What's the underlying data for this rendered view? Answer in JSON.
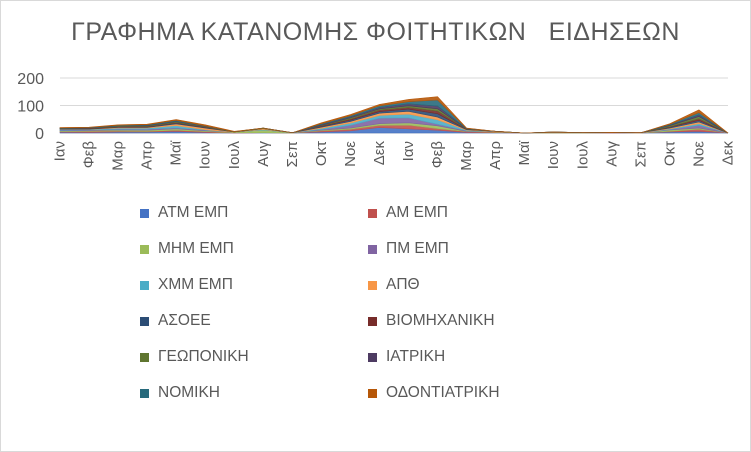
{
  "chart_data": {
    "type": "area",
    "stacked": true,
    "title": "ΓΡΑΦΗΜΑ ΚΑΤΑΝΟΜΗΣ ΦΟΙΤΗΤΙΚΩΝ   ΕΙΔΗΣΕΩΝ",
    "ylim": [
      0,
      200
    ],
    "yticks": [
      0,
      100,
      200
    ],
    "grid": true,
    "legend_position": "bottom",
    "categories": [
      "Ιαν",
      "Φεβ",
      "Μαρ",
      "Απρ",
      "Μαϊ",
      "Ιουν",
      "Ιουλ",
      "Αυγ",
      "Σεπ",
      "Οκτ",
      "Νοε",
      "Δεκ",
      "Ιαν",
      "Φεβ",
      "Μαρ",
      "Απρ",
      "Μαϊ",
      "Ιουν",
      "Ιουλ",
      "Αυγ",
      "Σεπ",
      "Οκτ",
      "Νοε",
      "Δεκ"
    ],
    "series": [
      {
        "name": "ΑΤΜ ΕΜΠ",
        "color": "#4472c4",
        "values": [
          3,
          2,
          4,
          4,
          6,
          2,
          0,
          1,
          0,
          4,
          8,
          20,
          15,
          10,
          2,
          1,
          0,
          0,
          0,
          0,
          0,
          4,
          6,
          0
        ]
      },
      {
        "name": "ΑΜ ΕΜΠ",
        "color": "#c0504d",
        "values": [
          2,
          4,
          3,
          2,
          4,
          3,
          1,
          0,
          0,
          4,
          6,
          8,
          14,
          6,
          3,
          2,
          0,
          0,
          0,
          1,
          0,
          2,
          8,
          0
        ]
      },
      {
        "name": "ΜΗΜ ΕΜΠ",
        "color": "#9bbb59",
        "values": [
          3,
          3,
          4,
          4,
          5,
          3,
          2,
          10,
          1,
          2,
          4,
          6,
          8,
          10,
          1,
          2,
          0,
          2,
          1,
          0,
          0,
          5,
          4,
          0
        ]
      },
      {
        "name": "ΠΜ ΕΜΠ",
        "color": "#8064a2",
        "values": [
          2,
          2,
          3,
          4,
          4,
          2,
          0,
          0,
          0,
          3,
          10,
          20,
          18,
          6,
          2,
          0,
          0,
          0,
          0,
          1,
          0,
          2,
          10,
          0
        ]
      },
      {
        "name": "ΧΜΜ ΕΜΠ",
        "color": "#4bacc6",
        "values": [
          3,
          2,
          4,
          4,
          8,
          2,
          0,
          2,
          0,
          4,
          8,
          10,
          14,
          16,
          2,
          0,
          0,
          0,
          0,
          0,
          0,
          2,
          6,
          0
        ]
      },
      {
        "name": "ΑΠΘ",
        "color": "#f79646",
        "values": [
          1,
          1,
          2,
          2,
          6,
          6,
          1,
          3,
          0,
          4,
          6,
          8,
          10,
          10,
          2,
          1,
          0,
          1,
          0,
          0,
          1,
          3,
          6,
          0
        ]
      },
      {
        "name": "ΑΣΟΕΕ",
        "color": "#2c4d75",
        "values": [
          1,
          1,
          1,
          2,
          3,
          2,
          0,
          0,
          0,
          3,
          5,
          6,
          8,
          12,
          1,
          0,
          0,
          0,
          0,
          0,
          0,
          3,
          6,
          0
        ]
      },
      {
        "name": "ΒΙΟΜΗΧΑΝΙΚΗ",
        "color": "#772c2a",
        "values": [
          1,
          2,
          2,
          2,
          2,
          2,
          0,
          0,
          0,
          2,
          4,
          6,
          6,
          10,
          1,
          0,
          0,
          0,
          0,
          0,
          0,
          2,
          6,
          0
        ]
      },
      {
        "name": "ΓΕΩΠΟΝΙΚΗ",
        "color": "#5f7530",
        "values": [
          1,
          1,
          2,
          2,
          3,
          2,
          1,
          2,
          0,
          2,
          4,
          4,
          6,
          8,
          1,
          0,
          0,
          1,
          0,
          0,
          0,
          4,
          8,
          0
        ]
      },
      {
        "name": "ΙΑΤΡΙΚΗ",
        "color": "#4d3b62",
        "values": [
          1,
          1,
          1,
          2,
          2,
          1,
          0,
          0,
          0,
          3,
          4,
          5,
          7,
          10,
          1,
          0,
          0,
          0,
          0,
          0,
          0,
          2,
          6,
          0
        ]
      },
      {
        "name": "ΝΟΜΙΚΗ",
        "color": "#276a7c",
        "values": [
          1,
          1,
          2,
          2,
          3,
          1,
          0,
          0,
          0,
          3,
          4,
          6,
          8,
          22,
          1,
          0,
          0,
          0,
          0,
          0,
          0,
          3,
          8,
          0
        ]
      },
      {
        "name": "ΟΔΟΝΤΙΑΤΡΙΚΗ",
        "color": "#b65708",
        "values": [
          1,
          1,
          2,
          2,
          3,
          4,
          1,
          0,
          0,
          3,
          4,
          5,
          8,
          12,
          1,
          0,
          0,
          0,
          0,
          0,
          0,
          2,
          10,
          0
        ]
      }
    ]
  }
}
